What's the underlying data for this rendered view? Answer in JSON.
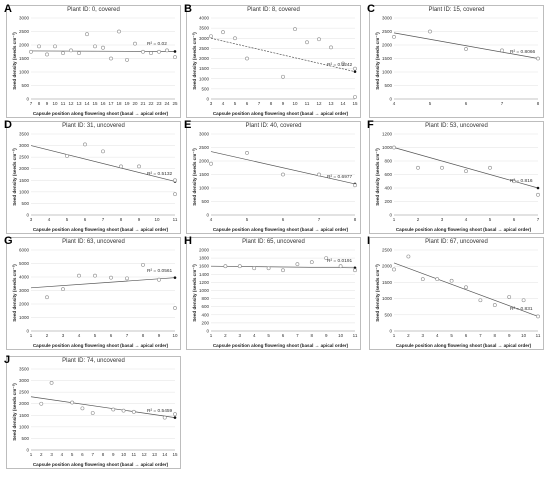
{
  "chart_data": [
    {
      "id": "A",
      "type": "scatter",
      "title": "Plant ID: 0, covered",
      "xlabel": "Capsule position along flowering shoot (basal → apical order)",
      "ylabel": "Seed density (seeds cm⁻³)",
      "xlim": [
        7,
        25
      ],
      "ylim": [
        0,
        3000
      ],
      "xticks": [
        7,
        8,
        9,
        10,
        11,
        12,
        13,
        14,
        15,
        16,
        17,
        18,
        19,
        20,
        21,
        22,
        23,
        24,
        25
      ],
      "yticks": [
        0,
        500,
        1000,
        1500,
        2000,
        2500,
        3000
      ],
      "x": [
        7,
        8,
        9,
        10,
        11,
        12,
        13,
        14,
        15,
        16,
        17,
        18,
        19,
        20,
        21,
        22,
        23,
        24,
        25
      ],
      "y": [
        1750,
        1950,
        1650,
        1950,
        1700,
        1800,
        1700,
        2400,
        1950,
        1900,
        1500,
        2500,
        1450,
        2050,
        1750,
        1700,
        1750,
        1800,
        1550
      ],
      "trend": "solid",
      "trendline": [
        [
          7,
          1780
        ],
        [
          25,
          1760
        ]
      ],
      "r2": "R² = 0.02"
    },
    {
      "id": "B",
      "type": "scatter",
      "title": "Plant ID: 8, covered",
      "xlabel": "Capsule position along flowering shoot (basal → apical order)",
      "ylabel": "Seed density (seeds cm⁻³)",
      "xlim": [
        3,
        15
      ],
      "ylim": [
        0,
        4000
      ],
      "xticks": [
        3,
        4,
        5,
        6,
        7,
        8,
        9,
        10,
        11,
        12,
        13,
        14,
        15
      ],
      "yticks": [
        0,
        500,
        1000,
        1500,
        2000,
        2500,
        3000,
        3500,
        4000
      ],
      "x": [
        3,
        4,
        5,
        6,
        9,
        10,
        11,
        12,
        13,
        14,
        15,
        15
      ],
      "y": [
        3100,
        3300,
        3000,
        2000,
        1100,
        3450,
        2800,
        2950,
        2550,
        1750,
        1500,
        100
      ],
      "trend": "dashed",
      "trendline": [
        [
          3,
          3000
        ],
        [
          15,
          1350
        ]
      ],
      "r2": "R² = 0.3242"
    },
    {
      "id": "C",
      "type": "scatter",
      "title": "Plant ID: 15, covered",
      "xlabel": "",
      "ylabel": "Seed density (seeds cm⁻³)",
      "xlim": [
        4,
        8
      ],
      "ylim": [
        0,
        3000
      ],
      "xticks": [
        4,
        5,
        6,
        7,
        8
      ],
      "yticks": [
        0,
        500,
        1000,
        1500,
        2000,
        2500,
        3000
      ],
      "x": [
        4,
        5,
        6,
        7,
        8
      ],
      "y": [
        2300,
        2500,
        1850,
        1800,
        1500
      ],
      "trend": "solid",
      "trendline": [
        [
          4,
          2450
        ],
        [
          8,
          1500
        ]
      ],
      "r2": "R² = 0.8066"
    },
    {
      "id": "D",
      "type": "scatter",
      "title": "Plant ID: 31, uncovered",
      "xlabel": "Capsule position along flowering shoot (basal → apical order)",
      "ylabel": "Seed density (seeds cm⁻³)",
      "xlim": [
        3,
        11
      ],
      "ylim": [
        0,
        3500
      ],
      "xticks": [
        3,
        4,
        5,
        6,
        7,
        8,
        9,
        10,
        11
      ],
      "yticks": [
        0,
        500,
        1000,
        1500,
        2000,
        2500,
        3000,
        3500
      ],
      "x": [
        5,
        6,
        7,
        8,
        9,
        11,
        11
      ],
      "y": [
        2550,
        3050,
        2750,
        2100,
        2100,
        1500,
        900
      ],
      "trend": "solid",
      "trendline": [
        [
          3,
          3000
        ],
        [
          11,
          1450
        ]
      ],
      "r2": "R² = 0.5132"
    },
    {
      "id": "E",
      "type": "scatter",
      "title": "Plant ID: 40, covered",
      "xlabel": "Capsule position along flowering shoot (basal → apical order)",
      "ylabel": "Seed density (seeds cm⁻³)",
      "xlim": [
        4,
        8
      ],
      "ylim": [
        0,
        3000
      ],
      "xticks": [
        4,
        5,
        6,
        7,
        8
      ],
      "yticks": [
        0,
        500,
        1000,
        1500,
        2000,
        2500,
        3000
      ],
      "x": [
        4,
        5,
        6,
        7,
        8
      ],
      "y": [
        1900,
        2300,
        1500,
        1500,
        1100
      ],
      "trend": "solid",
      "trendline": [
        [
          4,
          2350
        ],
        [
          8,
          1150
        ]
      ],
      "r2": "R² = 0.6977"
    },
    {
      "id": "F",
      "type": "scatter",
      "title": "Plant ID: 53, uncovered",
      "xlabel": "Capsule position along flowering shoot (basal → apical order)",
      "ylabel": "Seed density (seeds cm⁻³)",
      "xlim": [
        1,
        7
      ],
      "ylim": [
        0,
        1200
      ],
      "xticks": [
        1,
        2,
        3,
        4,
        5,
        6,
        7
      ],
      "yticks": [
        0,
        200,
        400,
        600,
        800,
        1000,
        1200
      ],
      "x": [
        1,
        2,
        3,
        4,
        5,
        6,
        7
      ],
      "y": [
        1000,
        700,
        700,
        650,
        700,
        500,
        300
      ],
      "trend": "solid",
      "trendline": [
        [
          1,
          1000
        ],
        [
          7,
          400
        ]
      ],
      "r2": "R² = 0.816"
    },
    {
      "id": "G",
      "type": "scatter",
      "title": "Plant ID: 63, uncovered",
      "xlabel": "Capsule position along flowering shoot (basal → apical order)",
      "ylabel": "Seed density (seeds cm⁻³)",
      "xlim": [
        1,
        10
      ],
      "ylim": [
        0,
        6000
      ],
      "xticks": [
        1,
        2,
        3,
        4,
        5,
        6,
        7,
        8,
        9,
        10
      ],
      "yticks": [
        0,
        1000,
        2000,
        3000,
        4000,
        5000,
        6000
      ],
      "x": [
        2,
        3,
        4,
        5,
        6,
        7,
        8,
        9,
        10
      ],
      "y": [
        2500,
        3100,
        4100,
        4100,
        3950,
        3900,
        4900,
        3800,
        1700
      ],
      "trend": "solid",
      "trendline": [
        [
          1,
          3200
        ],
        [
          10,
          3950
        ]
      ],
      "r2": "R² = 0.0561"
    },
    {
      "id": "H",
      "type": "scatter",
      "title": "Plant ID: 65, uncovered",
      "xlabel": "Capsule position along flowering shoot (basal → apical order)",
      "ylabel": "Seed density (seeds cm⁻³)",
      "xlim": [
        1,
        11
      ],
      "ylim": [
        0,
        2000
      ],
      "xticks": [
        1,
        2,
        3,
        4,
        5,
        6,
        7,
        8,
        9,
        10,
        11
      ],
      "yticks": [
        0,
        200,
        400,
        600,
        800,
        1000,
        1200,
        1400,
        1600,
        1800,
        2000
      ],
      "x": [
        2,
        3,
        4,
        5,
        6,
        7,
        8,
        9,
        10,
        11
      ],
      "y": [
        1600,
        1600,
        1550,
        1550,
        1500,
        1650,
        1700,
        1800,
        1600,
        1500
      ],
      "trend": "solid",
      "trendline": [
        [
          1,
          1600
        ],
        [
          11,
          1560
        ]
      ],
      "r2": "R² = 0.0191"
    },
    {
      "id": "I",
      "type": "scatter",
      "title": "Plant ID: 67, uncovered",
      "xlabel": "Capsule position along flowering shoot (basal → apical order)",
      "ylabel": "Seed density (seeds cm⁻³)",
      "xlim": [
        1,
        11
      ],
      "ylim": [
        0,
        2500
      ],
      "xticks": [
        1,
        2,
        3,
        4,
        5,
        6,
        7,
        8,
        9,
        10,
        11
      ],
      "yticks": [
        0,
        500,
        1000,
        1500,
        2000,
        2500
      ],
      "x": [
        1,
        2,
        3,
        4,
        5,
        6,
        7,
        8,
        9,
        10,
        11
      ],
      "y": [
        1900,
        2300,
        1600,
        1600,
        1550,
        1350,
        950,
        800,
        1050,
        950,
        450
      ],
      "trend": "solid",
      "trendline": [
        [
          1,
          2100
        ],
        [
          11,
          450
        ]
      ],
      "r2": "R² = 0.831"
    },
    {
      "id": "J",
      "type": "scatter",
      "title": "Plant ID: 74, uncovered",
      "xlabel": "Capsule position along flowering shoot (basal → apical order)",
      "ylabel": "Seed density (seeds cm⁻³)",
      "xlim": [
        1,
        15
      ],
      "ylim": [
        0,
        3500
      ],
      "xticks": [
        1,
        2,
        3,
        4,
        5,
        6,
        7,
        8,
        9,
        10,
        11,
        12,
        13,
        14,
        15
      ],
      "yticks": [
        0,
        500,
        1000,
        1500,
        2000,
        2500,
        3000,
        3500
      ],
      "x": [
        2,
        3,
        5,
        6,
        7,
        9,
        10,
        11,
        14,
        15
      ],
      "y": [
        2000,
        2900,
        2050,
        1800,
        1600,
        1750,
        1700,
        1650,
        1400,
        1550
      ],
      "trend": "solid",
      "trendline": [
        [
          1,
          2300
        ],
        [
          15,
          1400
        ]
      ],
      "r2": "R² = 0.5459"
    }
  ]
}
